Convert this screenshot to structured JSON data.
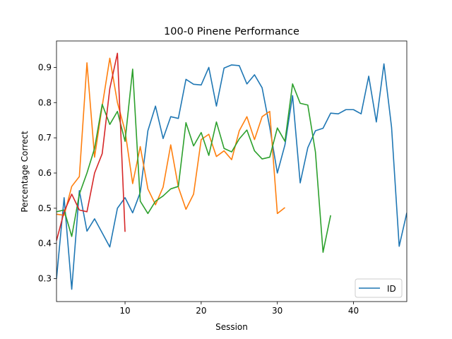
{
  "chart_data": {
    "type": "line",
    "title": "100-0 Pinene Performance",
    "xlabel": "Session",
    "ylabel": "Percentage Correct",
    "xlim": [
      1,
      47
    ],
    "ylim": [
      0.235,
      0.975
    ],
    "xticks": [
      10,
      20,
      30,
      40
    ],
    "yticks": [
      0.3,
      0.4,
      0.5,
      0.6,
      0.7,
      0.8,
      0.9
    ],
    "ytick_labels": [
      "0.3",
      "0.4",
      "0.5",
      "0.6",
      "0.7",
      "0.8",
      "0.9"
    ],
    "grid": false,
    "legend_position": "lower-right",
    "series": [
      {
        "name": "ID",
        "color": "#1f77b4",
        "x": [
          1,
          2,
          3,
          4,
          5,
          6,
          7,
          8,
          9,
          10,
          11,
          12,
          13,
          14,
          15,
          16,
          17,
          18,
          19,
          20,
          21,
          22,
          23,
          24,
          25,
          26,
          27,
          28,
          29,
          30,
          31,
          32,
          33,
          34,
          35,
          36,
          37,
          38,
          39,
          40,
          41,
          42,
          43,
          44,
          45,
          46,
          47
        ],
        "y": [
          0.3,
          0.53,
          0.27,
          0.55,
          0.435,
          0.47,
          0.43,
          0.39,
          0.5,
          0.53,
          0.487,
          0.545,
          0.72,
          0.79,
          0.698,
          0.76,
          0.755,
          0.866,
          0.852,
          0.85,
          0.9,
          0.79,
          0.898,
          0.907,
          0.905,
          0.853,
          0.879,
          0.842,
          0.73,
          0.6,
          0.68,
          0.82,
          0.572,
          0.672,
          0.72,
          0.727,
          0.77,
          0.768,
          0.78,
          0.78,
          0.768,
          0.875,
          0.745,
          0.91,
          0.73,
          0.392,
          0.487
        ]
      },
      {
        "color": "#ff7f0e",
        "x": [
          1,
          2,
          3,
          4,
          5,
          6,
          7,
          8,
          9,
          10,
          11,
          12,
          13,
          14,
          15,
          16,
          17,
          18,
          19,
          20,
          21,
          22,
          23,
          24,
          25,
          26,
          27,
          28,
          29,
          30,
          31
        ],
        "y": [
          0.483,
          0.48,
          0.562,
          0.59,
          0.913,
          0.645,
          0.79,
          0.926,
          0.8,
          0.72,
          0.57,
          0.675,
          0.555,
          0.51,
          0.56,
          0.68,
          0.56,
          0.497,
          0.54,
          0.695,
          0.71,
          0.647,
          0.663,
          0.638,
          0.72,
          0.76,
          0.695,
          0.76,
          0.775,
          0.485,
          0.502
        ]
      },
      {
        "color": "#2ca02c",
        "x": [
          1,
          2,
          3,
          4,
          5,
          6,
          7,
          8,
          9,
          10,
          11,
          12,
          13,
          14,
          15,
          16,
          17,
          18,
          19,
          20,
          21,
          22,
          23,
          24,
          25,
          26,
          27,
          28,
          29,
          30,
          31,
          32,
          33,
          34,
          35,
          36,
          37
        ],
        "y": [
          0.49,
          0.495,
          0.42,
          0.54,
          0.6,
          0.67,
          0.795,
          0.738,
          0.775,
          0.69,
          0.895,
          0.52,
          0.485,
          0.52,
          0.535,
          0.555,
          0.562,
          0.743,
          0.677,
          0.715,
          0.65,
          0.745,
          0.67,
          0.66,
          0.697,
          0.722,
          0.663,
          0.64,
          0.645,
          0.728,
          0.69,
          0.853,
          0.798,
          0.793,
          0.66,
          0.375,
          0.48
        ]
      },
      {
        "color": "#d62728",
        "x": [
          1,
          2,
          3,
          4,
          5,
          6,
          7,
          8,
          9,
          10
        ],
        "y": [
          0.408,
          0.49,
          0.54,
          0.495,
          0.49,
          0.6,
          0.655,
          0.84,
          0.94,
          0.433
        ]
      }
    ]
  }
}
